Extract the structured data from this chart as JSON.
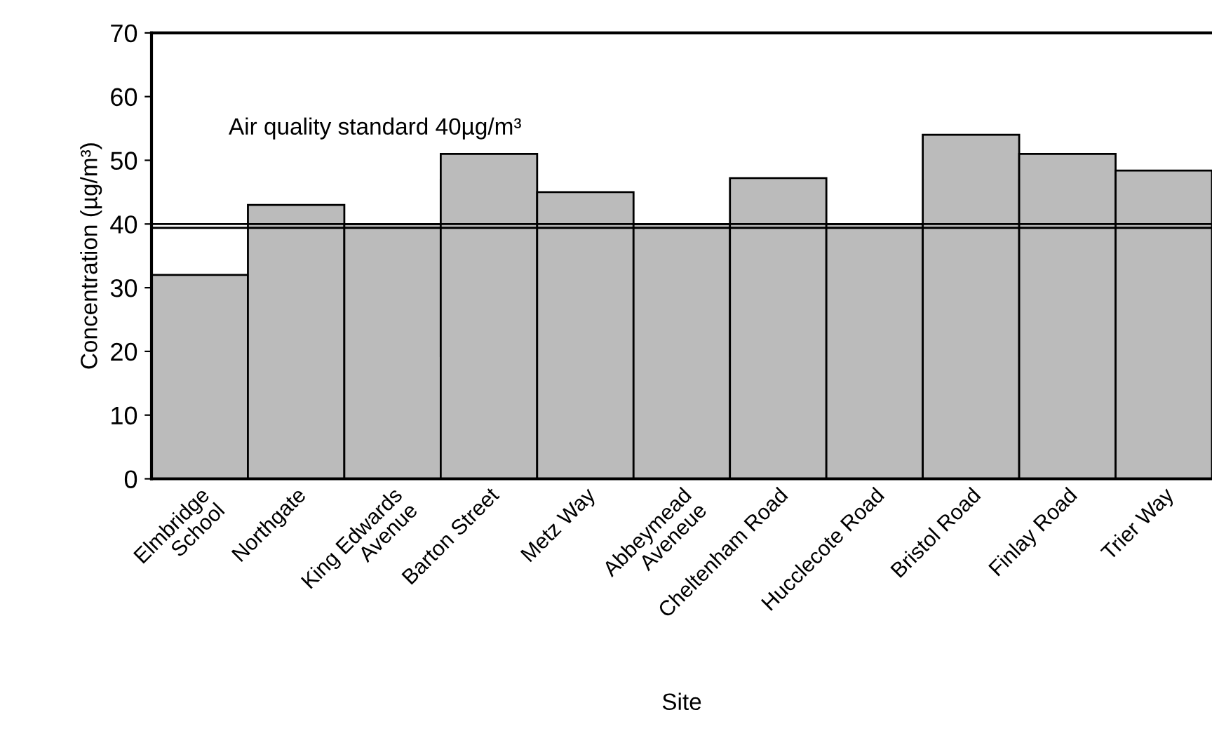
{
  "chart_data": {
    "type": "bar",
    "xlabel": "Site",
    "ylabel": "Concentration (µg/m³)",
    "categories": [
      "Elmbridge\nSchool",
      "Northgate",
      "King Edwards\nAvenue",
      "Barton Street",
      "Metz Way",
      "Abbeymead\nAveneue",
      "Cheltenham Road",
      "Hucclecote Road",
      "Bristol Road",
      "Finlay Road",
      "Trier Way"
    ],
    "values": [
      32,
      43,
      40,
      51,
      45,
      40,
      47.2,
      40,
      54,
      51,
      48.4
    ],
    "color": "#bbbbbb",
    "ylim": [
      0,
      70
    ],
    "yticks": [
      0,
      10,
      20,
      30,
      40,
      50,
      60,
      70
    ],
    "ref_lines": [
      {
        "axis": "y",
        "value": 40,
        "label": "Air quality standard 40µg/m³",
        "color": "#000000"
      }
    ],
    "grid": false,
    "legend": false
  }
}
